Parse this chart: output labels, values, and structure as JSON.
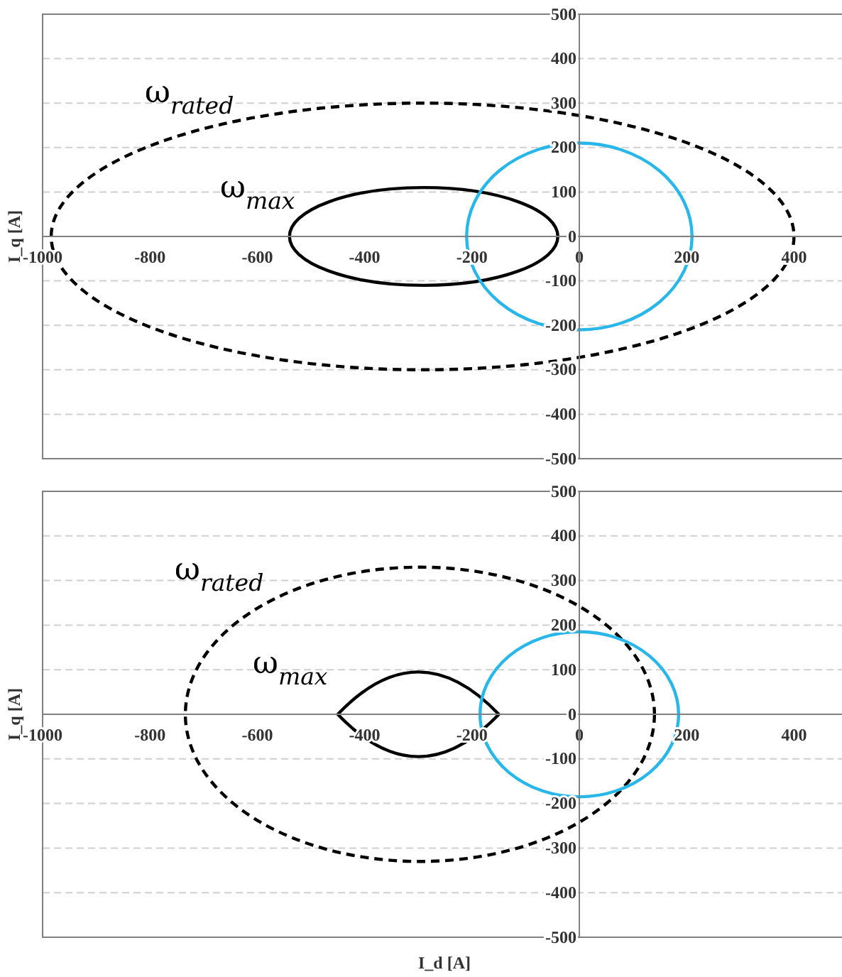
{
  "chart_data": [
    {
      "type": "line",
      "ylabel": "I_q [A]",
      "xlim": [
        -1000,
        500
      ],
      "ylim": [
        -500,
        500
      ],
      "xticks": [
        -1000,
        -800,
        -600,
        -400,
        -200,
        0,
        200,
        400
      ],
      "yticks": [
        -500,
        -400,
        -300,
        -200,
        -100,
        0,
        100,
        200,
        300,
        400,
        500
      ],
      "grid": "y",
      "annotations": [
        "ω$_{rated}$",
        "ω$_{max}$"
      ]
    },
    {
      "type": "line",
      "xlabel": "I_d [A]",
      "ylabel": "I_q [A]",
      "xlim": [
        -1000,
        500
      ],
      "ylim": [
        -500,
        500
      ],
      "xticks": [
        -1000,
        -800,
        -600,
        -400,
        -200,
        0,
        200,
        400
      ],
      "yticks": [
        -500,
        -400,
        -300,
        -200,
        -100,
        0,
        100,
        200,
        300,
        400,
        500
      ],
      "grid": "y",
      "annotations": [
        "ω$_{rated}$",
        "ω$_{max}$"
      ]
    }
  ]
}
